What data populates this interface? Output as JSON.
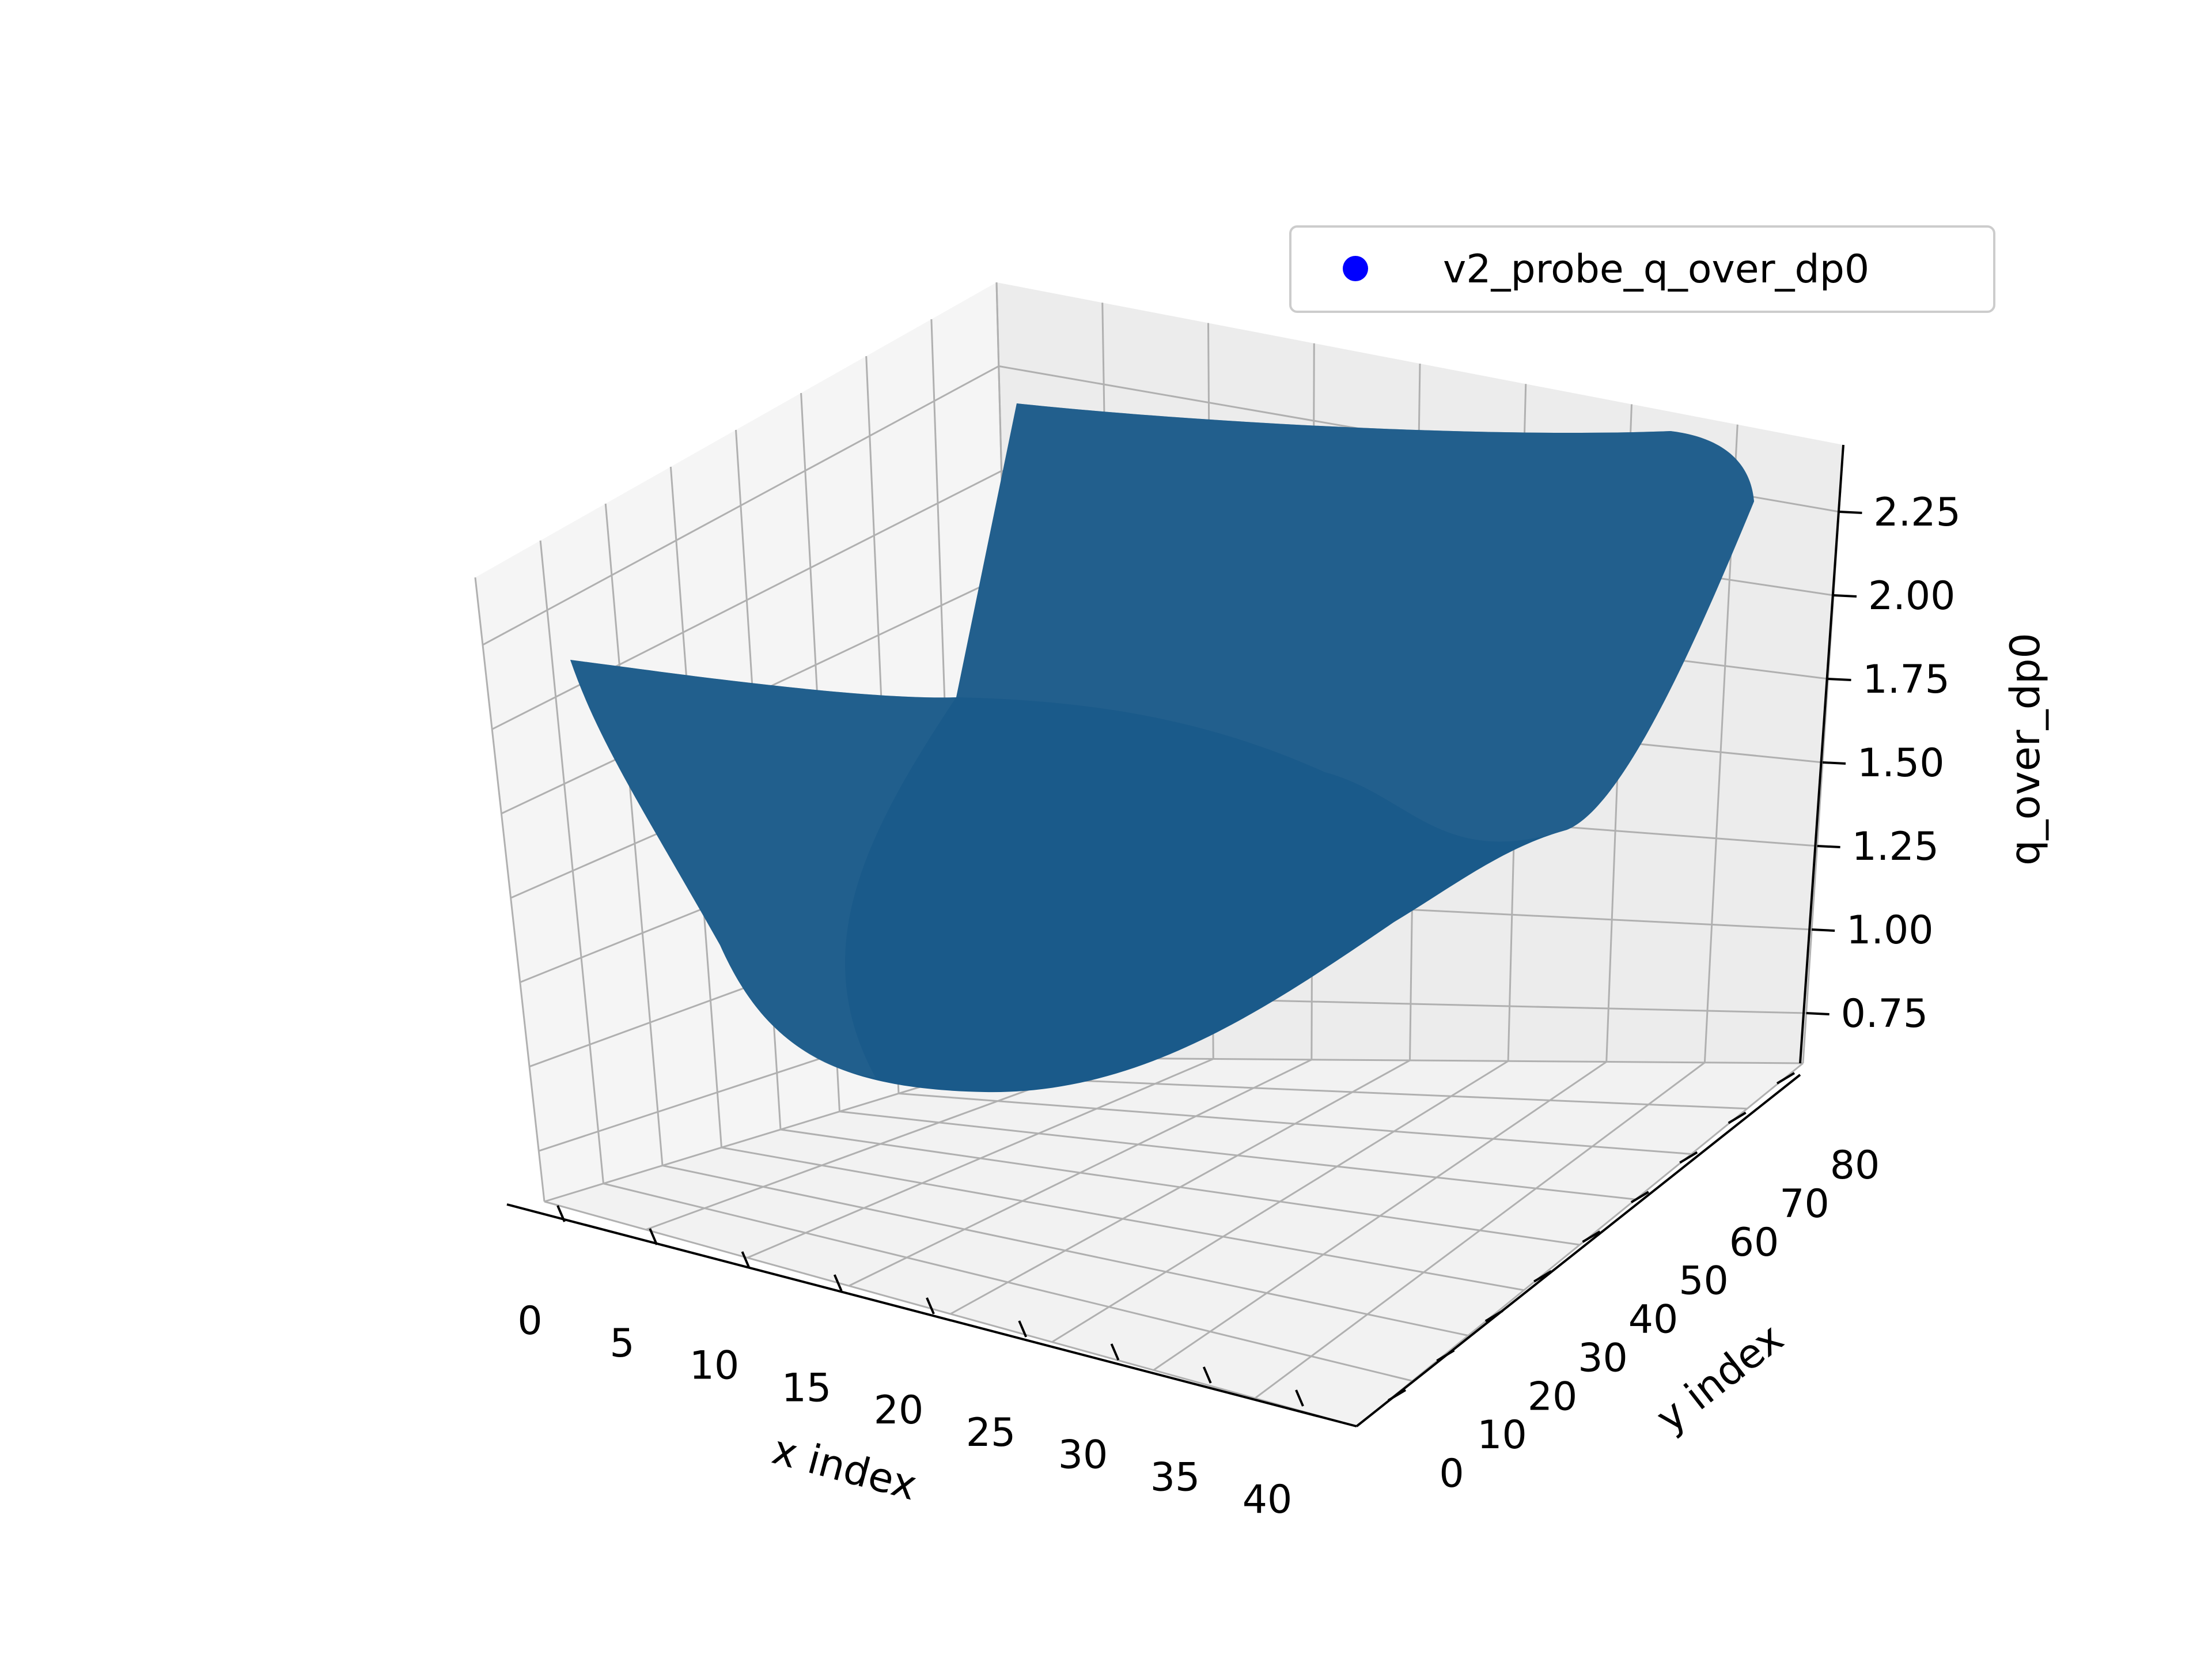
{
  "chart_data": {
    "type": "surface3d",
    "title": "",
    "xlabel": "x index",
    "ylabel": "y index",
    "zlabel": "q_over_dp0",
    "xlim": [
      0,
      40
    ],
    "ylim": [
      0,
      80
    ],
    "zlim": [
      0.6,
      2.45
    ],
    "x_ticks": [
      0,
      5,
      10,
      15,
      20,
      25,
      30,
      35,
      40
    ],
    "y_ticks": [
      0,
      10,
      20,
      30,
      40,
      50,
      60,
      70,
      80
    ],
    "z_ticks": [
      0.75,
      1.0,
      1.25,
      1.5,
      1.75,
      2.0,
      2.25
    ],
    "x_tick_labels": [
      "0",
      "5",
      "10",
      "15",
      "20",
      "25",
      "30",
      "35",
      "40"
    ],
    "y_tick_labels": [
      "0",
      "10",
      "20",
      "30",
      "40",
      "50",
      "60",
      "70",
      "80"
    ],
    "z_tick_labels": [
      "0.75",
      "1.00",
      "1.25",
      "1.50",
      "1.75",
      "2.00",
      "2.25"
    ],
    "grid": true,
    "legend": {
      "position": "top-right",
      "entries": [
        "v2_probe_q_over_dp0"
      ]
    },
    "series": [
      {
        "name": "v2_probe_q_over_dp0",
        "marker_color": "#0000ff",
        "surface_color": "#1a5a8a",
        "surface_samples": {
          "x": [
            0,
            10,
            20,
            30,
            40
          ],
          "y": [
            0,
            20,
            40,
            60,
            80
          ],
          "z": [
            [
              1.6,
              1.45,
              1.88,
              2.28,
              2.35
            ],
            [
              1.05,
              0.95,
              1.25,
              1.75,
              2.28
            ],
            [
              0.72,
              0.78,
              0.98,
              1.1,
              1.4
            ],
            [
              0.9,
              0.95,
              1.02,
              1.15,
              1.35
            ],
            [
              1.35,
              1.3,
              1.55,
              1.8,
              2.05
            ]
          ]
        }
      }
    ]
  },
  "colors": {
    "surface": "#1a5a8a",
    "pane_floor": "#f2f2f2",
    "pane_left": "#f5f5f5",
    "pane_back": "#ececec",
    "grid": "#b0b0b0",
    "axis": "#000000",
    "legend_marker": "#0000ff"
  }
}
